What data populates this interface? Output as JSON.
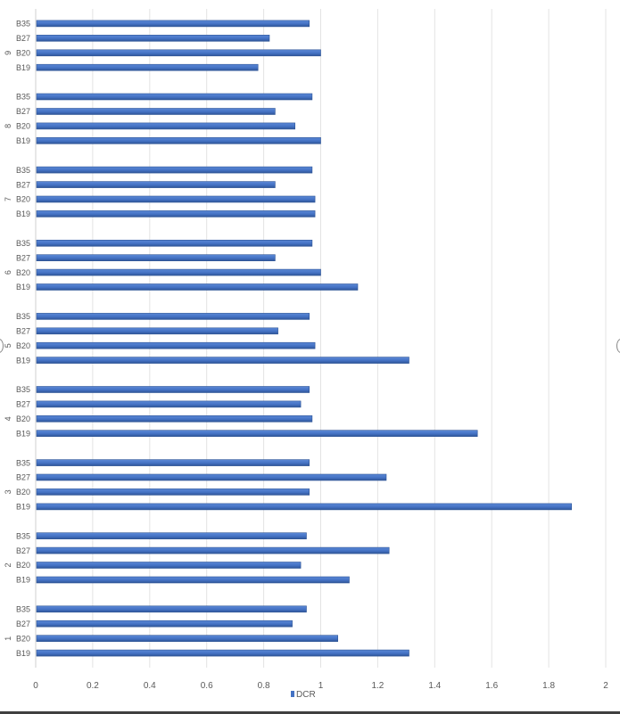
{
  "chart_data": {
    "type": "bar",
    "orientation": "horizontal",
    "groups": [
      "1",
      "2",
      "3",
      "4",
      "5",
      "6",
      "7",
      "8",
      "9"
    ],
    "categories": [
      "B19",
      "B20",
      "B27",
      "B35"
    ],
    "series": [
      {
        "name": "DCR",
        "color": "#4472C4",
        "values": [
          [
            1.31,
            1.06,
            0.9,
            0.95
          ],
          [
            1.1,
            0.93,
            1.24,
            0.95
          ],
          [
            1.88,
            0.96,
            1.23,
            0.96
          ],
          [
            1.55,
            0.97,
            0.93,
            0.96
          ],
          [
            1.31,
            0.98,
            0.85,
            0.96
          ],
          [
            1.13,
            1.0,
            0.84,
            0.97
          ],
          [
            0.98,
            0.98,
            0.84,
            0.97
          ],
          [
            1.0,
            0.91,
            0.84,
            0.97
          ],
          [
            0.78,
            1.0,
            0.82,
            0.96
          ]
        ]
      }
    ],
    "xlim": [
      0,
      2
    ],
    "xticks": [
      "0",
      "0.2",
      "0.4",
      "0.6",
      "0.8",
      "1",
      "1.2",
      "1.4",
      "1.6",
      "1.8",
      "2"
    ],
    "title": "",
    "xlabel": "",
    "ylabel": "",
    "grid": "vertical",
    "legend": "bottom"
  }
}
